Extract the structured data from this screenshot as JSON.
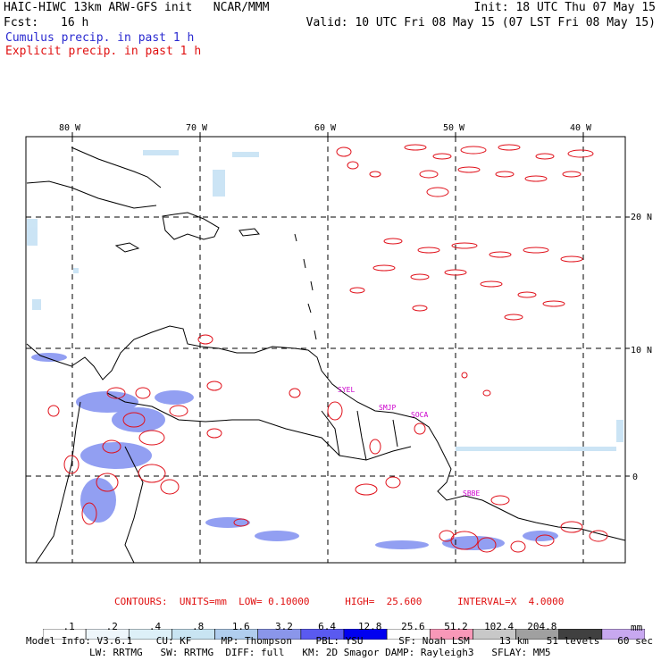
{
  "header": {
    "title_left": "HAIC-HIWC 13km ARW-GFS init   NCAR/MMM",
    "init": "Init: 18 UTC Thu 07 May 15",
    "fcst_label": "Fcst:",
    "fcst_value": "16 h",
    "valid": "Valid: 10 UTC Fri 08 May 15 (07 LST Fri 08 May 15)",
    "legend_cumulus": "Cumulus precip. in past 1 h",
    "legend_explicit": "Explicit precip. in past 1 h"
  },
  "map": {
    "lon_labels": [
      "80 W",
      "70 W",
      "60 W",
      "50 W",
      "40 W"
    ],
    "lat_labels": [
      "20 N",
      "10 N",
      "0"
    ],
    "stations": [
      "SYEL",
      "SMJP",
      "SOCA",
      "SBBE"
    ]
  },
  "contour_info": {
    "label": "CONTOURS:  UNITS=mm  LOW= 0.10000      HIGH=  25.600      INTERVAL=X  4.0000"
  },
  "colorbar": {
    "colors": [
      "#ffffff",
      "#eef6fb",
      "#ddf0f8",
      "#c8e4f2",
      "#b0cdee",
      "#8a96ea",
      "#5a5af0",
      "#0000f0",
      "#ffffff",
      "#f898b8",
      "#c8c8c8",
      "#a0a0a0",
      "#404040",
      "#c8a8f0"
    ],
    "labels": [
      ".1",
      ".2",
      ".4",
      ".8",
      "1.6",
      "3.2",
      "6.4",
      "12.8",
      "25.6",
      "51.2",
      "102.4",
      "204.8"
    ],
    "unit": "mm"
  },
  "footer": {
    "line1": "Model Info: V3.6.1    CU: KF     MP: Thompson    PBL: YSU      SF: Noah LSM     13 km   51 levels   60 sec",
    "line2": "LW: RRTMG   SW: RRTMG  DIFF: full   KM: 2D Smagor DAMP: Rayleigh3   SFLAY: MM5"
  }
}
